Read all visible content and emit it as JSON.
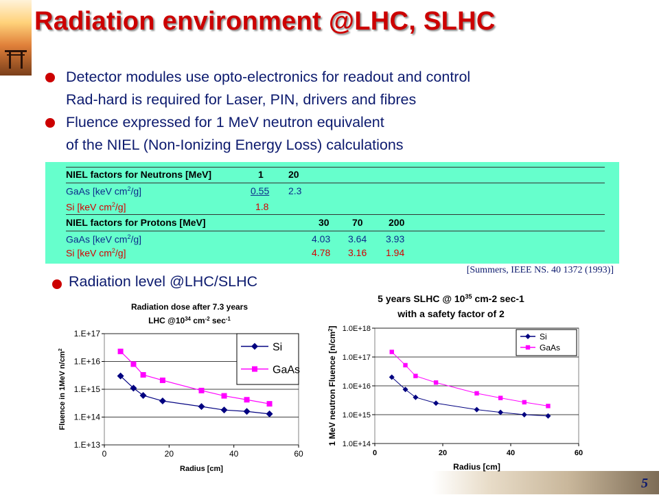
{
  "slide": {
    "title": "Radiation environment @LHC, SLHC",
    "page_number": "5"
  },
  "bullets": [
    {
      "lines": [
        "Detector modules use opto-electronics for readout and control",
        "Rad-hard is required for Laser, PIN, drivers and fibres"
      ]
    },
    {
      "lines": [
        "Fluence  expressed for 1 MeV neutron equivalent",
        "of the NIEL (Non-Ionizing Energy Loss) calculations"
      ]
    }
  ],
  "niel": {
    "neutrons_header": "NIEL factors for Neutrons  [MeV]",
    "neutrons_energies": [
      "1",
      "20"
    ],
    "neutron_rows": [
      {
        "label": "GaAs [keV cm",
        "unit_tail": "/g]",
        "values": [
          "0.55",
          "2.3"
        ]
      },
      {
        "label": "Si     [keV cm",
        "unit_tail": "/g]",
        "values": [
          "1.8"
        ]
      }
    ],
    "protons_header": "NIEL factors for Protons   [MeV]",
    "protons_energies": [
      "30",
      "70",
      "200"
    ],
    "proton_rows": [
      {
        "label": "GaAs [keV cm",
        "unit_tail": "/g]",
        "values": [
          "4.03",
          "3.64",
          "3.93"
        ]
      },
      {
        "label": "Si     [keV cm",
        "unit_tail": "/g]",
        "values": [
          "4.78",
          "3.16",
          "1.94"
        ]
      }
    ],
    "exponent": "2",
    "reference": "[Summers, IEEE NS. 40 1372 (1993)]"
  },
  "radiation_bullet": "Radiation level @LHC/SLHC",
  "colors": {
    "title": "#cc0000",
    "text": "#0c1a6e",
    "table_bg": "#66ffcc",
    "si": "#000080",
    "gaas": "#ff00ff"
  },
  "chart_data": [
    {
      "type": "line",
      "title": "Radiation dose after 7.3 years",
      "subtitle": "LHC @10^34 cm^-2 sec^-1",
      "xlabel": "Radius [cm]",
      "ylabel": "Fluence in 1MeV n/cm^2",
      "xlim": [
        0,
        60
      ],
      "ylim": [
        10000000000000.0,
        1e+17
      ],
      "x_ticks": [
        "0",
        "20",
        "40",
        "60"
      ],
      "y_ticks": [
        "1.E+13",
        "1.E+14",
        "1.E+15",
        "1.E+16",
        "1.E+17"
      ],
      "log_y": true,
      "grid": "horizontal",
      "legend": "top-right",
      "series": [
        {
          "name": "Si",
          "color": "#000080",
          "marker": "diamond",
          "x": [
            5,
            9,
            12,
            18,
            30,
            37,
            44,
            51
          ],
          "y": [
            3000000000000000.0,
            1100000000000000.0,
            600000000000000.0,
            380000000000000.0,
            240000000000000.0,
            180000000000000.0,
            160000000000000.0,
            130000000000000.0
          ]
        },
        {
          "name": "GaAs",
          "color": "#ff00ff",
          "marker": "square",
          "x": [
            5,
            9,
            12,
            18,
            30,
            37,
            44,
            51
          ],
          "y": [
            2.3e+16,
            8000000000000000.0,
            3300000000000000.0,
            2100000000000000.0,
            900000000000000.0,
            580000000000000.0,
            420000000000000.0,
            300000000000000.0
          ]
        }
      ]
    },
    {
      "type": "line",
      "title": "5 years SLHC @ 10^35 cm-2 sec-1",
      "subtitle": "with a safety factor of 2",
      "xlabel": "Radius [cm]",
      "ylabel": "1 MeV neutron Fluence [n/cm^2]",
      "xlim": [
        0,
        60
      ],
      "ylim": [
        100000000000000.0,
        1e+18
      ],
      "x_ticks": [
        "0",
        "20",
        "40",
        "60"
      ],
      "y_ticks": [
        "1.0E+14",
        "1.0E+15",
        "1.0E+16",
        "1.0E+17",
        "1.0E+18"
      ],
      "log_y": true,
      "grid": "horizontal",
      "legend": "top-right",
      "series": [
        {
          "name": "Si",
          "color": "#000080",
          "marker": "diamond",
          "x": [
            5,
            9,
            12,
            18,
            30,
            37,
            44,
            51
          ],
          "y": [
            2e+16,
            7500000000000000.0,
            4000000000000000.0,
            2500000000000000.0,
            1500000000000000.0,
            1200000000000000.0,
            1000000000000000.0,
            900000000000000.0
          ]
        },
        {
          "name": "GaAs",
          "color": "#ff00ff",
          "marker": "square",
          "x": [
            5,
            9,
            12,
            18,
            30,
            37,
            44,
            51
          ],
          "y": [
            1.5e+17,
            5.2e+16,
            2.2e+16,
            1.3e+16,
            5500000000000000.0,
            3800000000000000.0,
            2700000000000000.0,
            2000000000000000.0
          ]
        }
      ]
    }
  ]
}
